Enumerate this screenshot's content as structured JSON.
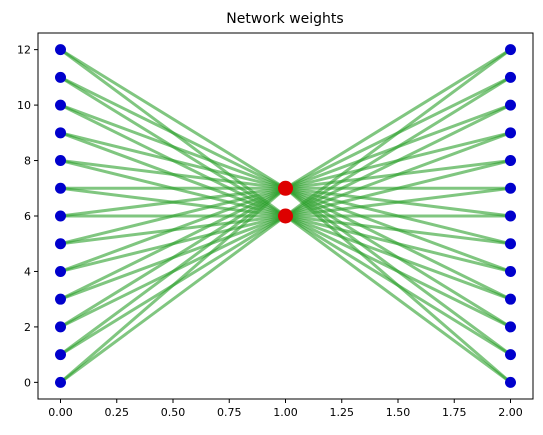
{
  "chart_data": {
    "type": "scatter",
    "title": "Network weights",
    "xlabel": "",
    "ylabel": "",
    "xlim": [
      -0.1,
      2.1
    ],
    "ylim": [
      -0.6,
      12.6
    ],
    "xticks": [
      0.0,
      0.25,
      0.5,
      0.75,
      1.0,
      1.25,
      1.5,
      1.75,
      2.0
    ],
    "xtick_labels": [
      "0.00",
      "0.25",
      "0.50",
      "0.75",
      "1.00",
      "1.25",
      "1.50",
      "1.75",
      "2.00"
    ],
    "yticks": [
      0,
      2,
      4,
      6,
      8,
      10,
      12
    ],
    "ytick_labels": [
      "0",
      "2",
      "4",
      "6",
      "8",
      "10",
      "12"
    ],
    "grid": false,
    "series": [
      {
        "x": [
          0,
          0,
          0,
          0,
          0,
          0,
          0,
          0,
          0,
          0,
          0,
          0,
          0
        ],
        "y": [
          0,
          1,
          2,
          3,
          4,
          5,
          6,
          7,
          8,
          9,
          10,
          11,
          12
        ],
        "color": "#0000cc"
      },
      {
        "x": [
          1,
          1
        ],
        "y": [
          6,
          7
        ],
        "color": "#dd0000"
      },
      {
        "x": [
          2,
          2,
          2,
          2,
          2,
          2,
          2,
          2,
          2,
          2,
          2,
          2,
          2
        ],
        "y": [
          0,
          1,
          2,
          3,
          4,
          5,
          6,
          7,
          8,
          9,
          10,
          11,
          12
        ],
        "color": "#0000cc"
      }
    ],
    "edges_color": "#2ca02c",
    "edges": "every node at x=0 and every node at x=2 is connected to both nodes at x=1"
  }
}
